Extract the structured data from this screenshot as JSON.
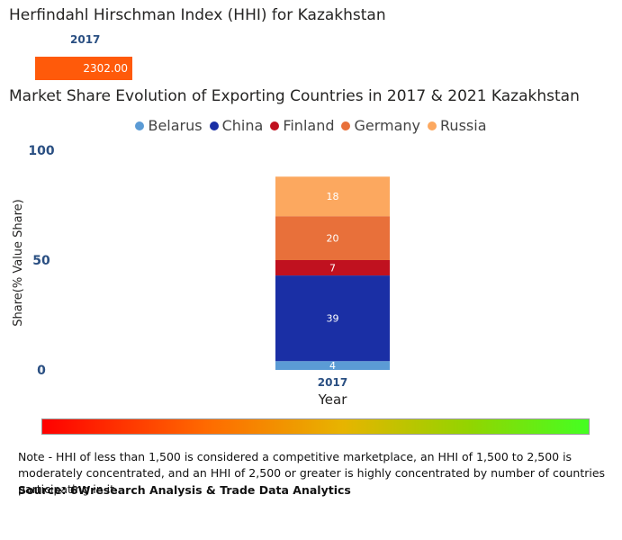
{
  "hhi": {
    "title": "Herfindahl Hirschman Index (HHI) for Kazakhstan",
    "year": "2017",
    "value_label": "2302.00",
    "value": 2302.0,
    "bar_color": "#ff5a0a"
  },
  "chart_data": {
    "type": "bar",
    "stacked": true,
    "title": "Market Share Evolution of Exporting Countries in 2017 & 2021 Kazakhstan",
    "xlabel": "Year",
    "ylabel": "Share(% Value Share)",
    "categories": [
      "2017"
    ],
    "yticks": [
      0,
      50,
      100
    ],
    "ylim": [
      0,
      100
    ],
    "legend_position": "top-center",
    "series": [
      {
        "name": "Belarus",
        "values": [
          4
        ],
        "color": "#5b9bd5"
      },
      {
        "name": "China",
        "values": [
          39
        ],
        "color": "#1a2fa5"
      },
      {
        "name": "Finland",
        "values": [
          7
        ],
        "color": "#c0111f"
      },
      {
        "name": "Germany",
        "values": [
          20
        ],
        "color": "#e8703a"
      },
      {
        "name": "Russia",
        "values": [
          18
        ],
        "color": "#fca85f"
      }
    ]
  },
  "note": "Note - HHI of less than 1,500 is considered a competitive marketplace, an HHI of 1,500 to 2,500 is moderately concentrated, and an HHI of 2,500 or greater is highly concentrated by number of countries participating in it.",
  "source": "Source: 6Wresearch Analysis & Trade Data Analytics"
}
